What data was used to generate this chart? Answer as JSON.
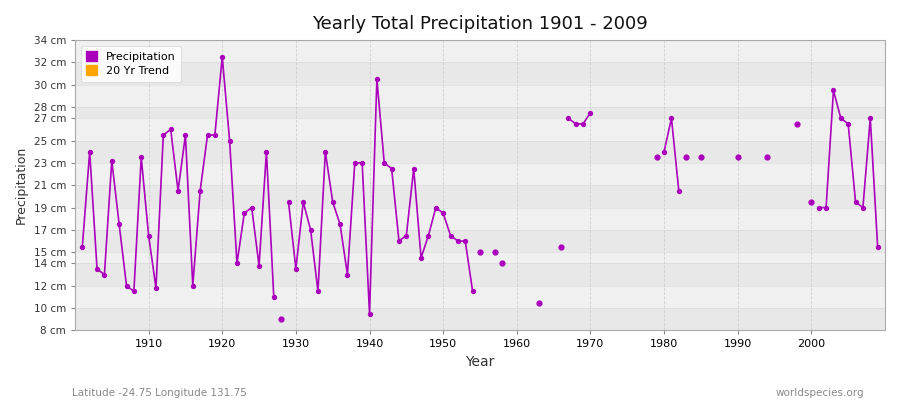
{
  "title": "Yearly Total Precipitation 1901 - 2009",
  "xlabel": "Year",
  "ylabel": "Precipitation",
  "lat_lon_label": "Latitude -24.75 Longitude 131.75",
  "watermark": "worldspecies.org",
  "line_color": "#AA00BB",
  "bg_color": "#FFFFFF",
  "plot_bg_color": "#F2F2F2",
  "ylim": [
    8,
    34
  ],
  "yticks": [
    8,
    10,
    12,
    14,
    15,
    17,
    19,
    21,
    23,
    25,
    27,
    28,
    30,
    32,
    34
  ],
  "ytick_labels": [
    "8 cm",
    "10 cm",
    "12 cm",
    "14 cm",
    "15 cm",
    "17 cm",
    "19 cm",
    "21 cm",
    "23 cm",
    "25 cm",
    "27 cm",
    "28 cm",
    "30 cm",
    "32 cm",
    "34 cm"
  ],
  "xticks": [
    1910,
    1920,
    1930,
    1940,
    1950,
    1960,
    1970,
    1980,
    1990,
    2000
  ],
  "xlim": [
    1900,
    2010
  ],
  "connected_data": [
    [
      1901,
      15.5
    ],
    [
      1902,
      24.0
    ],
    [
      1903,
      13.5
    ],
    [
      1904,
      13.0
    ],
    [
      1905,
      23.2
    ],
    [
      1906,
      17.5
    ],
    [
      1907,
      12.0
    ],
    [
      1908,
      11.5
    ],
    [
      1909,
      23.5
    ],
    [
      1910,
      16.5
    ],
    [
      1911,
      11.8
    ],
    [
      1912,
      25.5
    ],
    [
      1913,
      26.0
    ],
    [
      1914,
      20.5
    ],
    [
      1915,
      25.5
    ],
    [
      1916,
      12.0
    ],
    [
      1917,
      20.5
    ],
    [
      1918,
      25.5
    ],
    [
      1919,
      25.5
    ],
    [
      1920,
      32.5
    ],
    [
      1921,
      25.0
    ],
    [
      1922,
      14.0
    ],
    [
      1923,
      18.5
    ],
    [
      1924,
      19.0
    ],
    [
      1925,
      13.8
    ],
    [
      1926,
      24.0
    ],
    [
      1927,
      11.0
    ],
    null,
    [
      1929,
      19.5
    ],
    [
      1930,
      13.5
    ],
    [
      1931,
      19.5
    ],
    [
      1932,
      17.0
    ],
    [
      1933,
      11.5
    ],
    [
      1934,
      24.0
    ],
    [
      1935,
      19.5
    ],
    [
      1936,
      17.5
    ],
    [
      1937,
      13.0
    ],
    [
      1938,
      23.0
    ],
    [
      1939,
      23.0
    ],
    [
      1940,
      9.5
    ],
    [
      1941,
      30.5
    ],
    [
      1942,
      23.0
    ],
    [
      1943,
      22.5
    ],
    [
      1944,
      16.0
    ],
    [
      1945,
      16.5
    ],
    [
      1946,
      22.5
    ],
    [
      1947,
      14.5
    ],
    [
      1948,
      16.5
    ],
    [
      1949,
      19.0
    ],
    [
      1950,
      18.5
    ],
    [
      1951,
      16.5
    ],
    [
      1952,
      16.0
    ],
    [
      1953,
      16.0
    ],
    [
      1954,
      11.5
    ],
    null,
    null,
    null,
    null,
    null,
    null,
    null,
    null,
    null,
    null,
    null,
    null,
    [
      1967,
      27.0
    ],
    [
      1968,
      26.5
    ],
    [
      1969,
      26.5
    ],
    [
      1970,
      27.5
    ],
    null,
    null,
    null,
    null,
    null,
    null,
    null,
    null,
    null,
    [
      1980,
      24.0
    ],
    [
      1981,
      27.0
    ],
    [
      1982,
      20.5
    ],
    null,
    null,
    null,
    null,
    null,
    null,
    null,
    null,
    null,
    null,
    null,
    null,
    null,
    null,
    null,
    null,
    null,
    null,
    null,
    [
      2001,
      19.0
    ],
    [
      2002,
      19.0
    ],
    [
      2003,
      29.5
    ],
    [
      2004,
      27.0
    ],
    [
      2005,
      26.5
    ],
    [
      2006,
      19.5
    ],
    [
      2007,
      19.0
    ],
    [
      2008,
      27.0
    ],
    [
      2009,
      15.5
    ]
  ],
  "isolated_points": [
    [
      1928,
      9.0
    ],
    [
      1955,
      15.0
    ],
    [
      1957,
      15.0
    ],
    [
      1958,
      14.0
    ],
    [
      1963,
      10.5
    ],
    [
      1966,
      15.5
    ],
    [
      1979,
      23.5
    ],
    [
      1983,
      23.5
    ],
    [
      1985,
      23.5
    ],
    [
      1990,
      23.5
    ],
    [
      1994,
      23.5
    ],
    [
      1998,
      26.5
    ],
    [
      2000,
      19.5
    ]
  ]
}
